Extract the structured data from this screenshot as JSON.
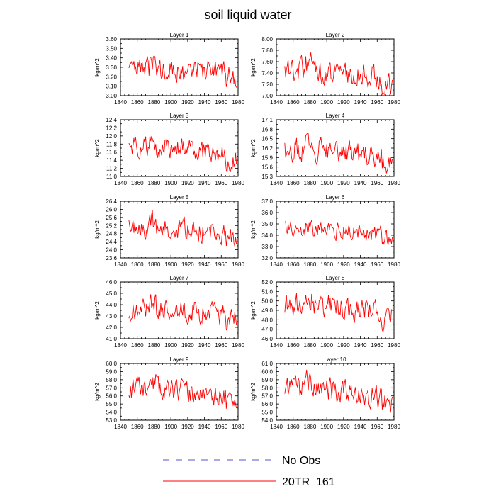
{
  "title": "soil liquid water",
  "legend": [
    {
      "label": "No Obs",
      "style": "dashed",
      "color": "#5555cc"
    },
    {
      "label": "20TR_161",
      "style": "solid",
      "color": "#ff0000"
    }
  ],
  "chart_data": [
    {
      "type": "line",
      "title": "Layer 1",
      "ylabel": "kg/m^2",
      "xlim": [
        1840,
        1980
      ],
      "xticks": [
        "1840",
        "1860",
        "1880",
        "1900",
        "1920",
        "1940",
        "1960",
        "1980"
      ],
      "ylim": [
        3.0,
        3.6
      ],
      "yticks": [
        "3.00",
        "3.10",
        "3.20",
        "3.30",
        "3.40",
        "3.50",
        "3.60"
      ],
      "series": [
        {
          "name": "20TR_161",
          "color": "#ff0000",
          "start_year": 1850,
          "end_year": 1978,
          "mean": 3.27,
          "amp": 0.1,
          "trend": -0.05
        }
      ]
    },
    {
      "type": "line",
      "title": "Layer 2",
      "ylabel": "kg/m^2",
      "xlim": [
        1840,
        1980
      ],
      "xticks": [
        "1840",
        "1860",
        "1880",
        "1900",
        "1920",
        "1940",
        "1960",
        "1980"
      ],
      "ylim": [
        7.0,
        8.0
      ],
      "yticks": [
        "7.00",
        "7.20",
        "7.40",
        "7.60",
        "7.80",
        "8.00"
      ],
      "series": [
        {
          "name": "20TR_161",
          "color": "#ff0000",
          "start_year": 1850,
          "end_year": 1978,
          "mean": 7.45,
          "amp": 0.18,
          "trend": -0.2
        }
      ]
    },
    {
      "type": "line",
      "title": "Layer 3",
      "ylabel": "kg/m^2",
      "xlim": [
        1840,
        1980
      ],
      "xticks": [
        "1840",
        "1860",
        "1880",
        "1900",
        "1920",
        "1940",
        "1960",
        "1980"
      ],
      "ylim": [
        11.0,
        12.4
      ],
      "yticks": [
        "11.0",
        "11.2",
        "11.4",
        "11.6",
        "11.8",
        "12.0",
        "12.2",
        "12.4"
      ],
      "series": [
        {
          "name": "20TR_161",
          "color": "#ff0000",
          "start_year": 1850,
          "end_year": 1978,
          "mean": 11.7,
          "amp": 0.22,
          "trend": -0.3
        }
      ]
    },
    {
      "type": "line",
      "title": "Layer 4",
      "ylabel": "kg/m^2",
      "xlim": [
        1840,
        1980
      ],
      "xticks": [
        "1840",
        "1860",
        "1880",
        "1900",
        "1920",
        "1940",
        "1960",
        "1980"
      ],
      "ylim": [
        15.3,
        17.1
      ],
      "yticks": [
        "15.3",
        "15.6",
        "15.9",
        "16.2",
        "16.5",
        "16.8",
        "17.1"
      ],
      "series": [
        {
          "name": "20TR_161",
          "color": "#ff0000",
          "start_year": 1850,
          "end_year": 1978,
          "mean": 16.15,
          "amp": 0.3,
          "trend": -0.4
        }
      ]
    },
    {
      "type": "line",
      "title": "Layer 5",
      "ylabel": "kg/m^2",
      "xlim": [
        1840,
        1980
      ],
      "xticks": [
        "1840",
        "1860",
        "1880",
        "1900",
        "1920",
        "1940",
        "1960",
        "1980"
      ],
      "ylim": [
        23.6,
        26.4
      ],
      "yticks": [
        "23.6",
        "24.0",
        "24.4",
        "24.8",
        "25.2",
        "25.6",
        "26.0",
        "26.4"
      ],
      "series": [
        {
          "name": "20TR_161",
          "color": "#ff0000",
          "start_year": 1850,
          "end_year": 1978,
          "mean": 25.1,
          "amp": 0.42,
          "trend": -0.6
        }
      ]
    },
    {
      "type": "line",
      "title": "Layer 6",
      "ylabel": "kg/m^2",
      "xlim": [
        1840,
        1980
      ],
      "xticks": [
        "1840",
        "1860",
        "1880",
        "1900",
        "1920",
        "1940",
        "1960",
        "1980"
      ],
      "ylim": [
        32.0,
        37.0
      ],
      "yticks": [
        "32.0",
        "33.0",
        "34.0",
        "35.0",
        "36.0",
        "37.0"
      ],
      "series": [
        {
          "name": "20TR_161",
          "color": "#ff0000",
          "start_year": 1850,
          "end_year": 1978,
          "mean": 34.5,
          "amp": 0.6,
          "trend": -0.8
        }
      ]
    },
    {
      "type": "line",
      "title": "Layer 7",
      "ylabel": "kg/m^2",
      "xlim": [
        1840,
        1980
      ],
      "xticks": [
        "1840",
        "1860",
        "1880",
        "1900",
        "1920",
        "1940",
        "1960",
        "1980"
      ],
      "ylim": [
        41.0,
        46.0
      ],
      "yticks": [
        "41.0",
        "42.0",
        "43.0",
        "44.0",
        "45.0",
        "46.0"
      ],
      "series": [
        {
          "name": "20TR_161",
          "color": "#ff0000",
          "start_year": 1850,
          "end_year": 1978,
          "mean": 43.6,
          "amp": 0.8,
          "trend": -1.0
        }
      ]
    },
    {
      "type": "line",
      "title": "Layer 8",
      "ylabel": "kg/m^2",
      "xlim": [
        1840,
        1980
      ],
      "xticks": [
        "1840",
        "1860",
        "1880",
        "1900",
        "1920",
        "1940",
        "1960",
        "1980"
      ],
      "ylim": [
        46.0,
        52.0
      ],
      "yticks": [
        "46.0",
        "47.0",
        "48.0",
        "49.0",
        "50.0",
        "51.0",
        "52.0"
      ],
      "series": [
        {
          "name": "20TR_161",
          "color": "#ff0000",
          "start_year": 1850,
          "end_year": 1978,
          "mean": 49.6,
          "amp": 1.0,
          "trend": -1.5
        }
      ]
    },
    {
      "type": "line",
      "title": "Layer 9",
      "ylabel": "kg/m^2",
      "xlim": [
        1840,
        1980
      ],
      "xticks": [
        "1840",
        "1860",
        "1880",
        "1900",
        "1920",
        "1940",
        "1960",
        "1980"
      ],
      "ylim": [
        53.0,
        60.0
      ],
      "yticks": [
        "53.0",
        "54.0",
        "55.0",
        "56.0",
        "57.0",
        "58.0",
        "59.0",
        "60.0"
      ],
      "series": [
        {
          "name": "20TR_161",
          "color": "#ff0000",
          "start_year": 1850,
          "end_year": 1978,
          "mean": 56.8,
          "amp": 1.1,
          "trend": -1.8
        }
      ]
    },
    {
      "type": "line",
      "title": "Layer 10",
      "ylabel": "kg/m^2",
      "xlim": [
        1840,
        1980
      ],
      "xticks": [
        "1840",
        "1860",
        "1880",
        "1900",
        "1920",
        "1940",
        "1960",
        "1980"
      ],
      "ylim": [
        54.0,
        61.0
      ],
      "yticks": [
        "54.0",
        "55.0",
        "56.0",
        "57.0",
        "58.0",
        "59.0",
        "60.0",
        "61.0"
      ],
      "series": [
        {
          "name": "20TR_161",
          "color": "#ff0000",
          "start_year": 1850,
          "end_year": 1978,
          "mean": 57.9,
          "amp": 1.2,
          "trend": -2.0
        }
      ]
    }
  ]
}
